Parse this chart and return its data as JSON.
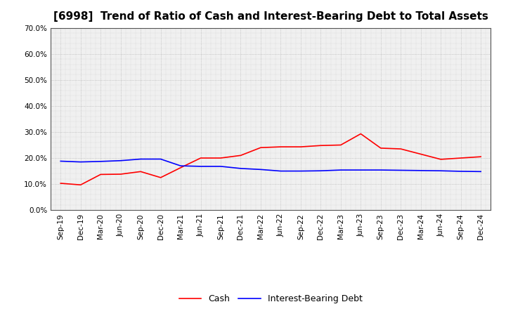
{
  "title": "[6998]  Trend of Ratio of Cash and Interest-Bearing Debt to Total Assets",
  "x_labels": [
    "Sep-19",
    "Dec-19",
    "Mar-20",
    "Jun-20",
    "Sep-20",
    "Dec-20",
    "Mar-21",
    "Jun-21",
    "Sep-21",
    "Dec-21",
    "Mar-22",
    "Jun-22",
    "Sep-22",
    "Dec-22",
    "Mar-23",
    "Jun-23",
    "Sep-23",
    "Dec-23",
    "Mar-24",
    "Jun-24",
    "Sep-24",
    "Dec-24"
  ],
  "cash": [
    0.103,
    0.097,
    0.137,
    0.138,
    0.148,
    0.125,
    0.163,
    0.2,
    0.2,
    0.21,
    0.24,
    0.243,
    0.243,
    0.248,
    0.25,
    0.293,
    0.238,
    0.235,
    0.215,
    0.195,
    0.2,
    0.205
  ],
  "interest_bearing_debt": [
    0.188,
    0.185,
    0.187,
    0.19,
    0.196,
    0.196,
    0.17,
    0.168,
    0.168,
    0.16,
    0.156,
    0.15,
    0.15,
    0.151,
    0.154,
    0.154,
    0.154,
    0.153,
    0.152,
    0.151,
    0.149,
    0.148
  ],
  "cash_color": "#FF0000",
  "debt_color": "#0000FF",
  "ylim": [
    0.0,
    0.7
  ],
  "yticks": [
    0.0,
    0.1,
    0.2,
    0.3,
    0.4,
    0.5,
    0.6,
    0.7
  ],
  "background_color": "#FFFFFF",
  "plot_bg_color": "#F0F0F0",
  "grid_color": "#999999",
  "legend_cash": "Cash",
  "legend_debt": "Interest-Bearing Debt",
  "title_fontsize": 11,
  "axis_fontsize": 7.5,
  "legend_fontsize": 9
}
